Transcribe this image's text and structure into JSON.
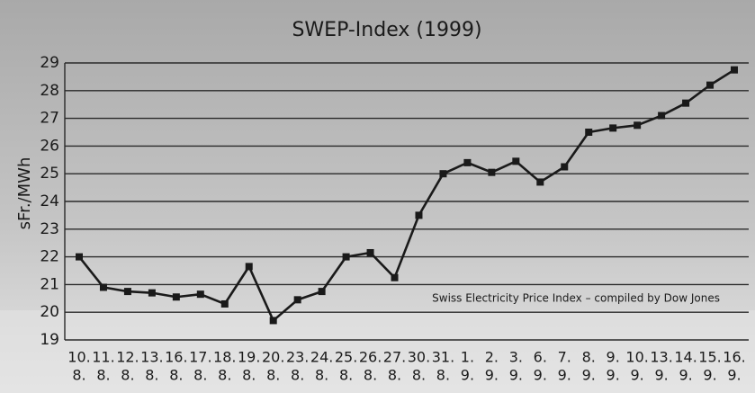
{
  "chart_data": {
    "type": "line",
    "title": "SWEP-Index (1999)",
    "ylabel": "sFr./MWh",
    "annotation": "Swiss Electricity Price Index – compiled by Dow Jones",
    "categories": [
      [
        "10.",
        "8."
      ],
      [
        "11.",
        "8."
      ],
      [
        "12.",
        "8."
      ],
      [
        "13.",
        "8."
      ],
      [
        "16.",
        "8."
      ],
      [
        "17.",
        "8."
      ],
      [
        "18.",
        "8."
      ],
      [
        "19.",
        "8."
      ],
      [
        "20.",
        "8."
      ],
      [
        "23.",
        "8."
      ],
      [
        "24.",
        "8."
      ],
      [
        "25.",
        "8."
      ],
      [
        "26.",
        "8."
      ],
      [
        "27.",
        "8."
      ],
      [
        "30.",
        "8."
      ],
      [
        "31.",
        "8."
      ],
      [
        "1.",
        "9."
      ],
      [
        "2.",
        "9."
      ],
      [
        "3.",
        "9."
      ],
      [
        "6.",
        "9."
      ],
      [
        "7.",
        "9."
      ],
      [
        "8.",
        "9."
      ],
      [
        "9.",
        "9."
      ],
      [
        "10.",
        "9."
      ],
      [
        "13.",
        "9."
      ],
      [
        "14.",
        "9."
      ],
      [
        "15.",
        "9."
      ],
      [
        "16.",
        "9."
      ]
    ],
    "values": [
      22.0,
      20.9,
      20.75,
      20.7,
      20.55,
      20.65,
      20.3,
      21.65,
      19.7,
      20.45,
      20.75,
      22.0,
      22.15,
      21.25,
      23.5,
      25.0,
      25.4,
      25.05,
      25.45,
      24.7,
      25.25,
      26.5,
      26.65,
      26.75,
      27.1,
      27.55,
      28.2,
      28.75
    ],
    "color": "#1a1a1a",
    "ylim": [
      19,
      29
    ],
    "yticks": [
      19,
      20,
      21,
      22,
      23,
      24,
      25,
      26,
      27,
      28,
      29
    ],
    "grid": true
  }
}
